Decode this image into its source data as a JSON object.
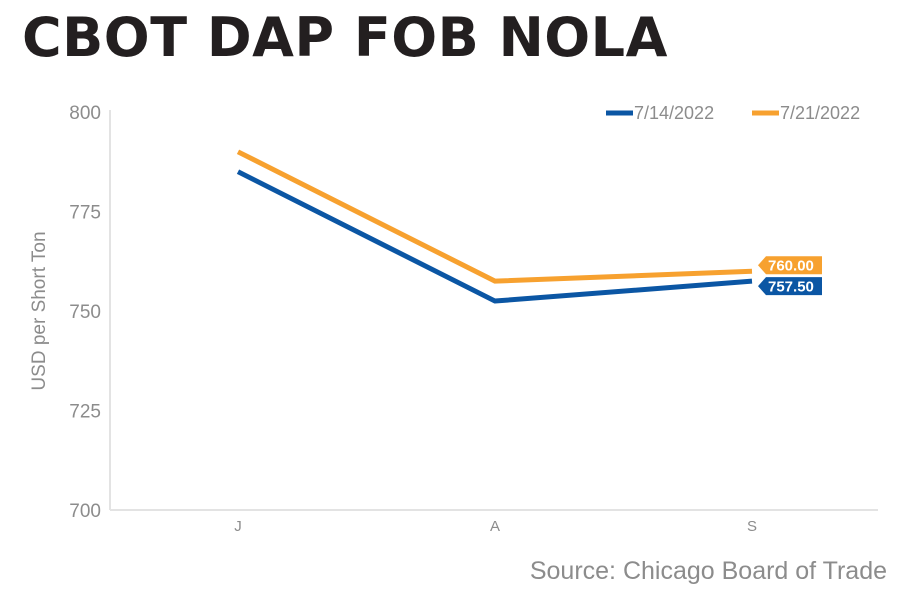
{
  "chart_data": {
    "type": "line",
    "title": "CBOT DAP FOB NOLA",
    "xlabel": "",
    "ylabel": "USD per Short Ton",
    "categories": [
      "J",
      "A",
      "S"
    ],
    "ylim": [
      700,
      800
    ],
    "yticks": [
      700,
      725,
      750,
      775,
      800
    ],
    "grid": false,
    "legend_position": "top-right",
    "series": [
      {
        "name": "7/14/2022",
        "color": "#0b56a4",
        "values": [
          785,
          752.5,
          757.5
        ],
        "end_label": "757.50"
      },
      {
        "name": "7/21/2022",
        "color": "#f7a12f",
        "values": [
          790,
          757.5,
          760
        ],
        "end_label": "760.00"
      }
    ],
    "source": "Source: Chicago Board of Trade"
  }
}
